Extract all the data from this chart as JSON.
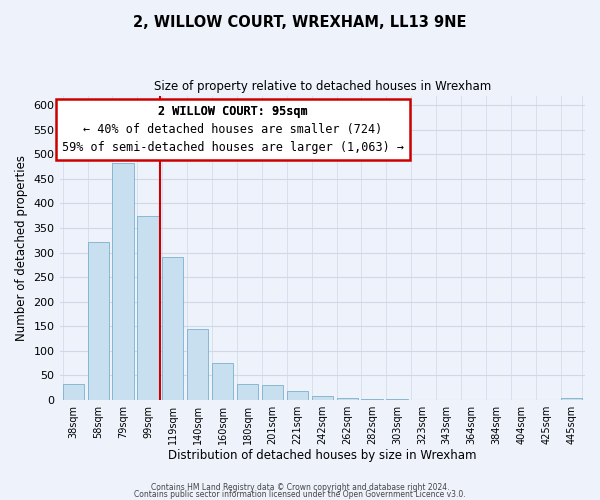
{
  "title": "2, WILLOW COURT, WREXHAM, LL13 9NE",
  "subtitle": "Size of property relative to detached houses in Wrexham",
  "xlabel": "Distribution of detached houses by size in Wrexham",
  "ylabel": "Number of detached properties",
  "bar_labels": [
    "38sqm",
    "58sqm",
    "79sqm",
    "99sqm",
    "119sqm",
    "140sqm",
    "160sqm",
    "180sqm",
    "201sqm",
    "221sqm",
    "242sqm",
    "262sqm",
    "282sqm",
    "303sqm",
    "323sqm",
    "343sqm",
    "364sqm",
    "384sqm",
    "404sqm",
    "425sqm",
    "445sqm"
  ],
  "bar_values": [
    32,
    322,
    483,
    375,
    290,
    144,
    75,
    32,
    30,
    17,
    8,
    3,
    2,
    1,
    0,
    0,
    0,
    0,
    0,
    0,
    3
  ],
  "bar_color": "#c8dff0",
  "bar_edge_color": "#7ab0ce",
  "vline_x": 3.5,
  "vline_color": "#cc0000",
  "ylim": [
    0,
    620
  ],
  "yticks": [
    0,
    50,
    100,
    150,
    200,
    250,
    300,
    350,
    400,
    450,
    500,
    550,
    600
  ],
  "annotation_title": "2 WILLOW COURT: 95sqm",
  "annotation_line1": "← 40% of detached houses are smaller (724)",
  "annotation_line2": "59% of semi-detached houses are larger (1,063) →",
  "annotation_box_color": "#ffffff",
  "annotation_box_edge": "#cc0000",
  "footer1": "Contains HM Land Registry data © Crown copyright and database right 2024.",
  "footer2": "Contains public sector information licensed under the Open Government Licence v3.0.",
  "background_color": "#eef2fb",
  "plot_background": "#eef2fb",
  "grid_color": "#d0d8e8"
}
